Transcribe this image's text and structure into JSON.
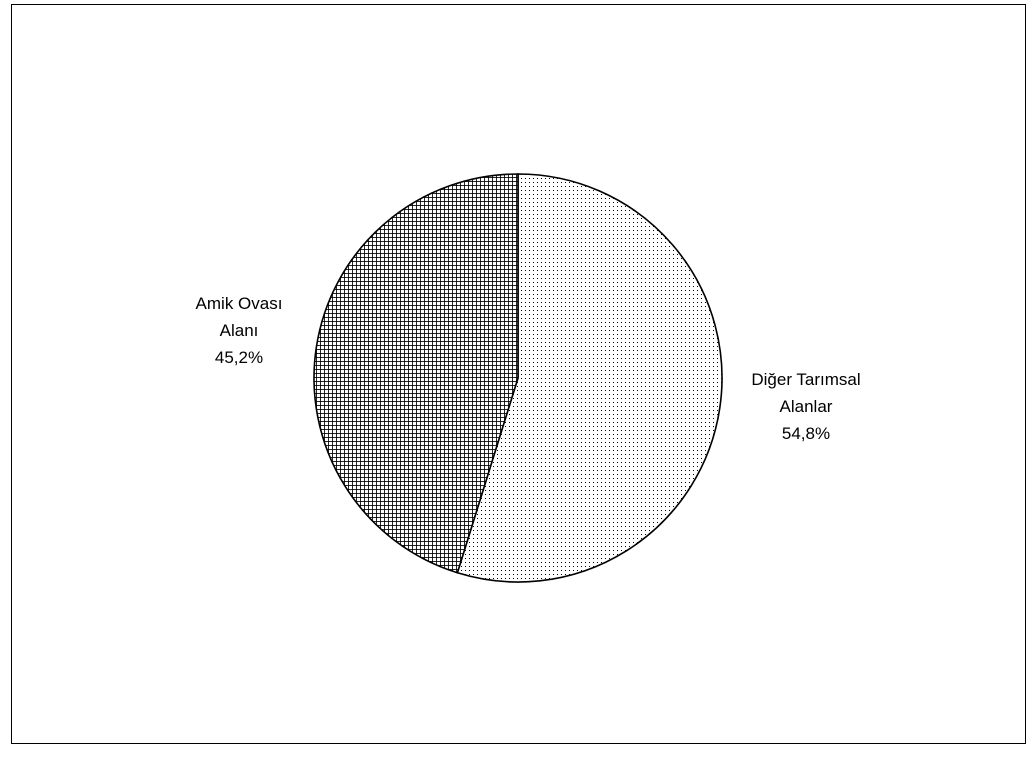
{
  "chart_data": {
    "type": "pie",
    "slices": [
      {
        "label_lines": [
          "Diğer Tarımsal",
          "Alanlar"
        ],
        "value": 54.8,
        "value_label": "54,8%",
        "pattern": "dots"
      },
      {
        "label_lines": [
          "Amik Ovası",
          "Alanı"
        ],
        "value": 45.2,
        "value_label": "45,2%",
        "pattern": "crosshatch"
      }
    ],
    "start_angle": "12 o'clock",
    "direction": "clockwise",
    "legend": "none",
    "labels": "outside",
    "colors": {
      "fill": "#ffffff",
      "pattern": "#000000",
      "outline": "#000000"
    }
  }
}
